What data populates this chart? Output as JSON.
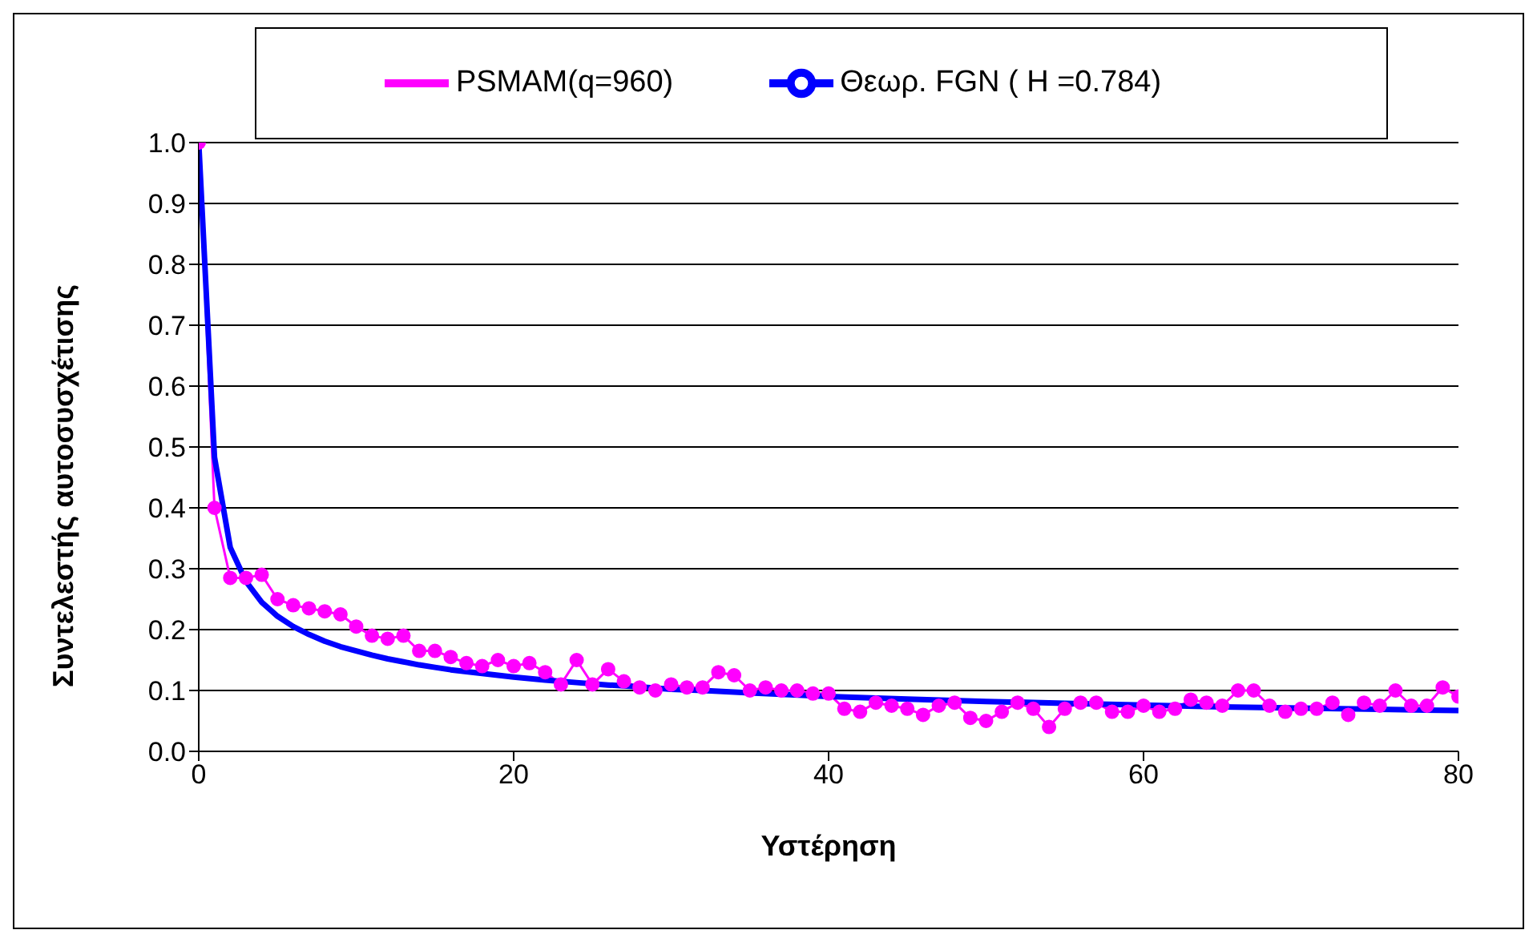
{
  "chart_data": {
    "type": "line",
    "xlabel": "Υστέρηση",
    "ylabel": "Συντελεστής αυτοσυσχέτισης",
    "x": [
      0,
      1,
      2,
      3,
      4,
      5,
      6,
      7,
      8,
      9,
      10,
      11,
      12,
      13,
      14,
      15,
      16,
      17,
      18,
      19,
      20,
      21,
      22,
      23,
      24,
      25,
      26,
      27,
      28,
      29,
      30,
      31,
      32,
      33,
      34,
      35,
      36,
      37,
      38,
      39,
      40,
      41,
      42,
      43,
      44,
      45,
      46,
      47,
      48,
      49,
      50,
      51,
      52,
      53,
      54,
      55,
      56,
      57,
      58,
      59,
      60,
      61,
      62,
      63,
      64,
      65,
      66,
      67,
      68,
      69,
      70,
      71,
      72,
      73,
      74,
      75,
      76,
      77,
      78,
      79,
      80
    ],
    "series": [
      {
        "name": "PSMAM(q=960)",
        "color": "#ff00ff",
        "marker": "circle",
        "values": [
          1.0,
          0.4,
          0.285,
          0.285,
          0.29,
          0.25,
          0.24,
          0.235,
          0.23,
          0.225,
          0.205,
          0.19,
          0.185,
          0.19,
          0.165,
          0.165,
          0.155,
          0.145,
          0.14,
          0.15,
          0.14,
          0.145,
          0.13,
          0.11,
          0.15,
          0.11,
          0.135,
          0.115,
          0.105,
          0.1,
          0.11,
          0.105,
          0.105,
          0.13,
          0.125,
          0.1,
          0.105,
          0.1,
          0.1,
          0.095,
          0.095,
          0.07,
          0.065,
          0.08,
          0.075,
          0.07,
          0.06,
          0.075,
          0.08,
          0.055,
          0.05,
          0.065,
          0.08,
          0.07,
          0.04,
          0.07,
          0.08,
          0.08,
          0.065,
          0.065,
          0.075,
          0.065,
          0.07,
          0.085,
          0.08,
          0.075,
          0.1,
          0.1,
          0.075,
          0.065,
          0.07,
          0.07,
          0.08,
          0.06,
          0.08,
          0.075,
          0.1,
          0.075,
          0.075,
          0.105,
          0.09
        ]
      },
      {
        "name": "Θεωρ. FGN ( H =0.784)",
        "color": "#0000ff",
        "marker": "none",
        "x": [
          0,
          1,
          2,
          3,
          4,
          5,
          6,
          7,
          8,
          9,
          10,
          11,
          12,
          13,
          14,
          15,
          16,
          17,
          18,
          19,
          20,
          22,
          24,
          26,
          28,
          30,
          32,
          35,
          40,
          45,
          50,
          55,
          60,
          65,
          70,
          75,
          80
        ],
        "values": [
          1.0,
          0.483,
          0.335,
          0.279,
          0.245,
          0.222,
          0.205,
          0.192,
          0.181,
          0.172,
          0.165,
          0.158,
          0.152,
          0.147,
          0.142,
          0.138,
          0.134,
          0.131,
          0.128,
          0.125,
          0.122,
          0.117,
          0.113,
          0.109,
          0.106,
          0.102,
          0.1,
          0.096,
          0.09,
          0.086,
          0.082,
          0.079,
          0.076,
          0.073,
          0.071,
          0.069,
          0.067
        ]
      }
    ],
    "xlim": [
      0,
      80
    ],
    "xticks": [
      0,
      20,
      40,
      60,
      80
    ],
    "ylim": [
      0,
      1
    ],
    "yticks": [
      {
        "value": 0,
        "label": "0.0"
      },
      {
        "value": 0.1,
        "label": "0.1"
      },
      {
        "value": 0.2,
        "label": "0.2"
      },
      {
        "value": 0.3,
        "label": "0.3"
      },
      {
        "value": 0.4,
        "label": "0.4"
      },
      {
        "value": 0.5,
        "label": "0.5"
      },
      {
        "value": 0.6,
        "label": "0.6"
      },
      {
        "value": 0.7,
        "label": "0.7"
      },
      {
        "value": 0.8,
        "label": "0.8"
      },
      {
        "value": 0.9,
        "label": "0.9"
      },
      {
        "value": 1,
        "label": "1.0"
      }
    ],
    "grid": "y",
    "legend": "top"
  }
}
